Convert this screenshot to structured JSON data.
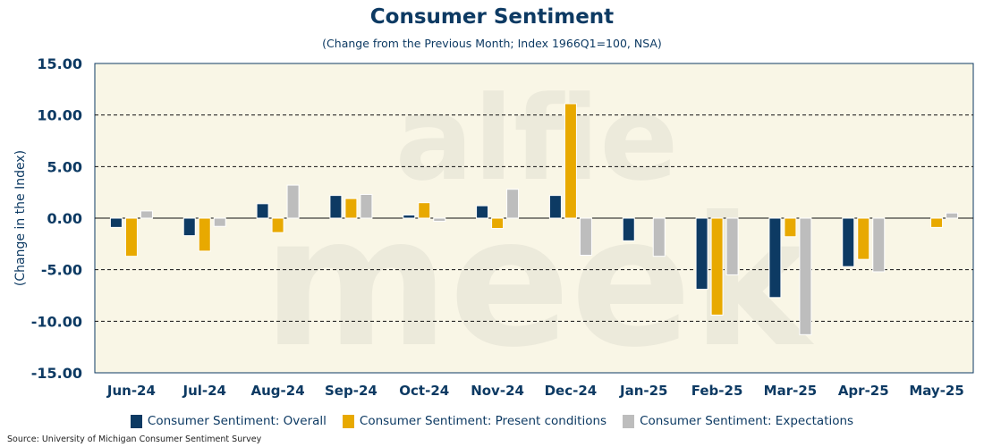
{
  "chart_data": {
    "type": "bar",
    "title": "Consumer Sentiment",
    "subtitle": "(Change from the Previous Month; Index 1966Q1=100, NSA)",
    "xlabel": "",
    "ylabel": "(Change in the Index)",
    "ylim": [
      -15,
      15
    ],
    "yticks": [
      "15.00",
      "10.00",
      "5.00",
      "0.00",
      "-5.00",
      "-10.00",
      "-15.00"
    ],
    "ytick_values": [
      15,
      10,
      5,
      0,
      -5,
      -10,
      -15
    ],
    "grid": "dashed horizontal",
    "legend_placement": "bottom",
    "categories": [
      "Jun-24",
      "Jul-24",
      "Aug-24",
      "Sep-24",
      "Oct-24",
      "Nov-24",
      "Dec-24",
      "Jan-25",
      "Feb-25",
      "Mar-25",
      "Apr-25",
      "May-25"
    ],
    "series": [
      {
        "name": "Consumer Sentiment: Overall",
        "color": "#0d3a63",
        "values": [
          -0.9,
          -1.7,
          1.4,
          2.2,
          0.3,
          1.2,
          2.2,
          -2.2,
          -6.9,
          -7.7,
          -4.7,
          0.0
        ]
      },
      {
        "name": "Consumer Sentiment: Present conditions",
        "color": "#e8a900",
        "values": [
          -3.7,
          -3.2,
          -1.4,
          1.9,
          1.5,
          -1.0,
          11.1,
          0.0,
          -9.4,
          -1.8,
          -4.0,
          -0.9
        ]
      },
      {
        "name": "Consumer Sentiment: Expectations",
        "color": "#bdbdbd",
        "values": [
          0.7,
          -0.8,
          3.2,
          2.3,
          -0.3,
          2.8,
          -3.6,
          -3.7,
          -5.5,
          -11.3,
          -5.2,
          0.5
        ]
      }
    ]
  },
  "watermark": "alfie meek",
  "source": "Source: University of Michigan Consumer Sentiment Survey"
}
